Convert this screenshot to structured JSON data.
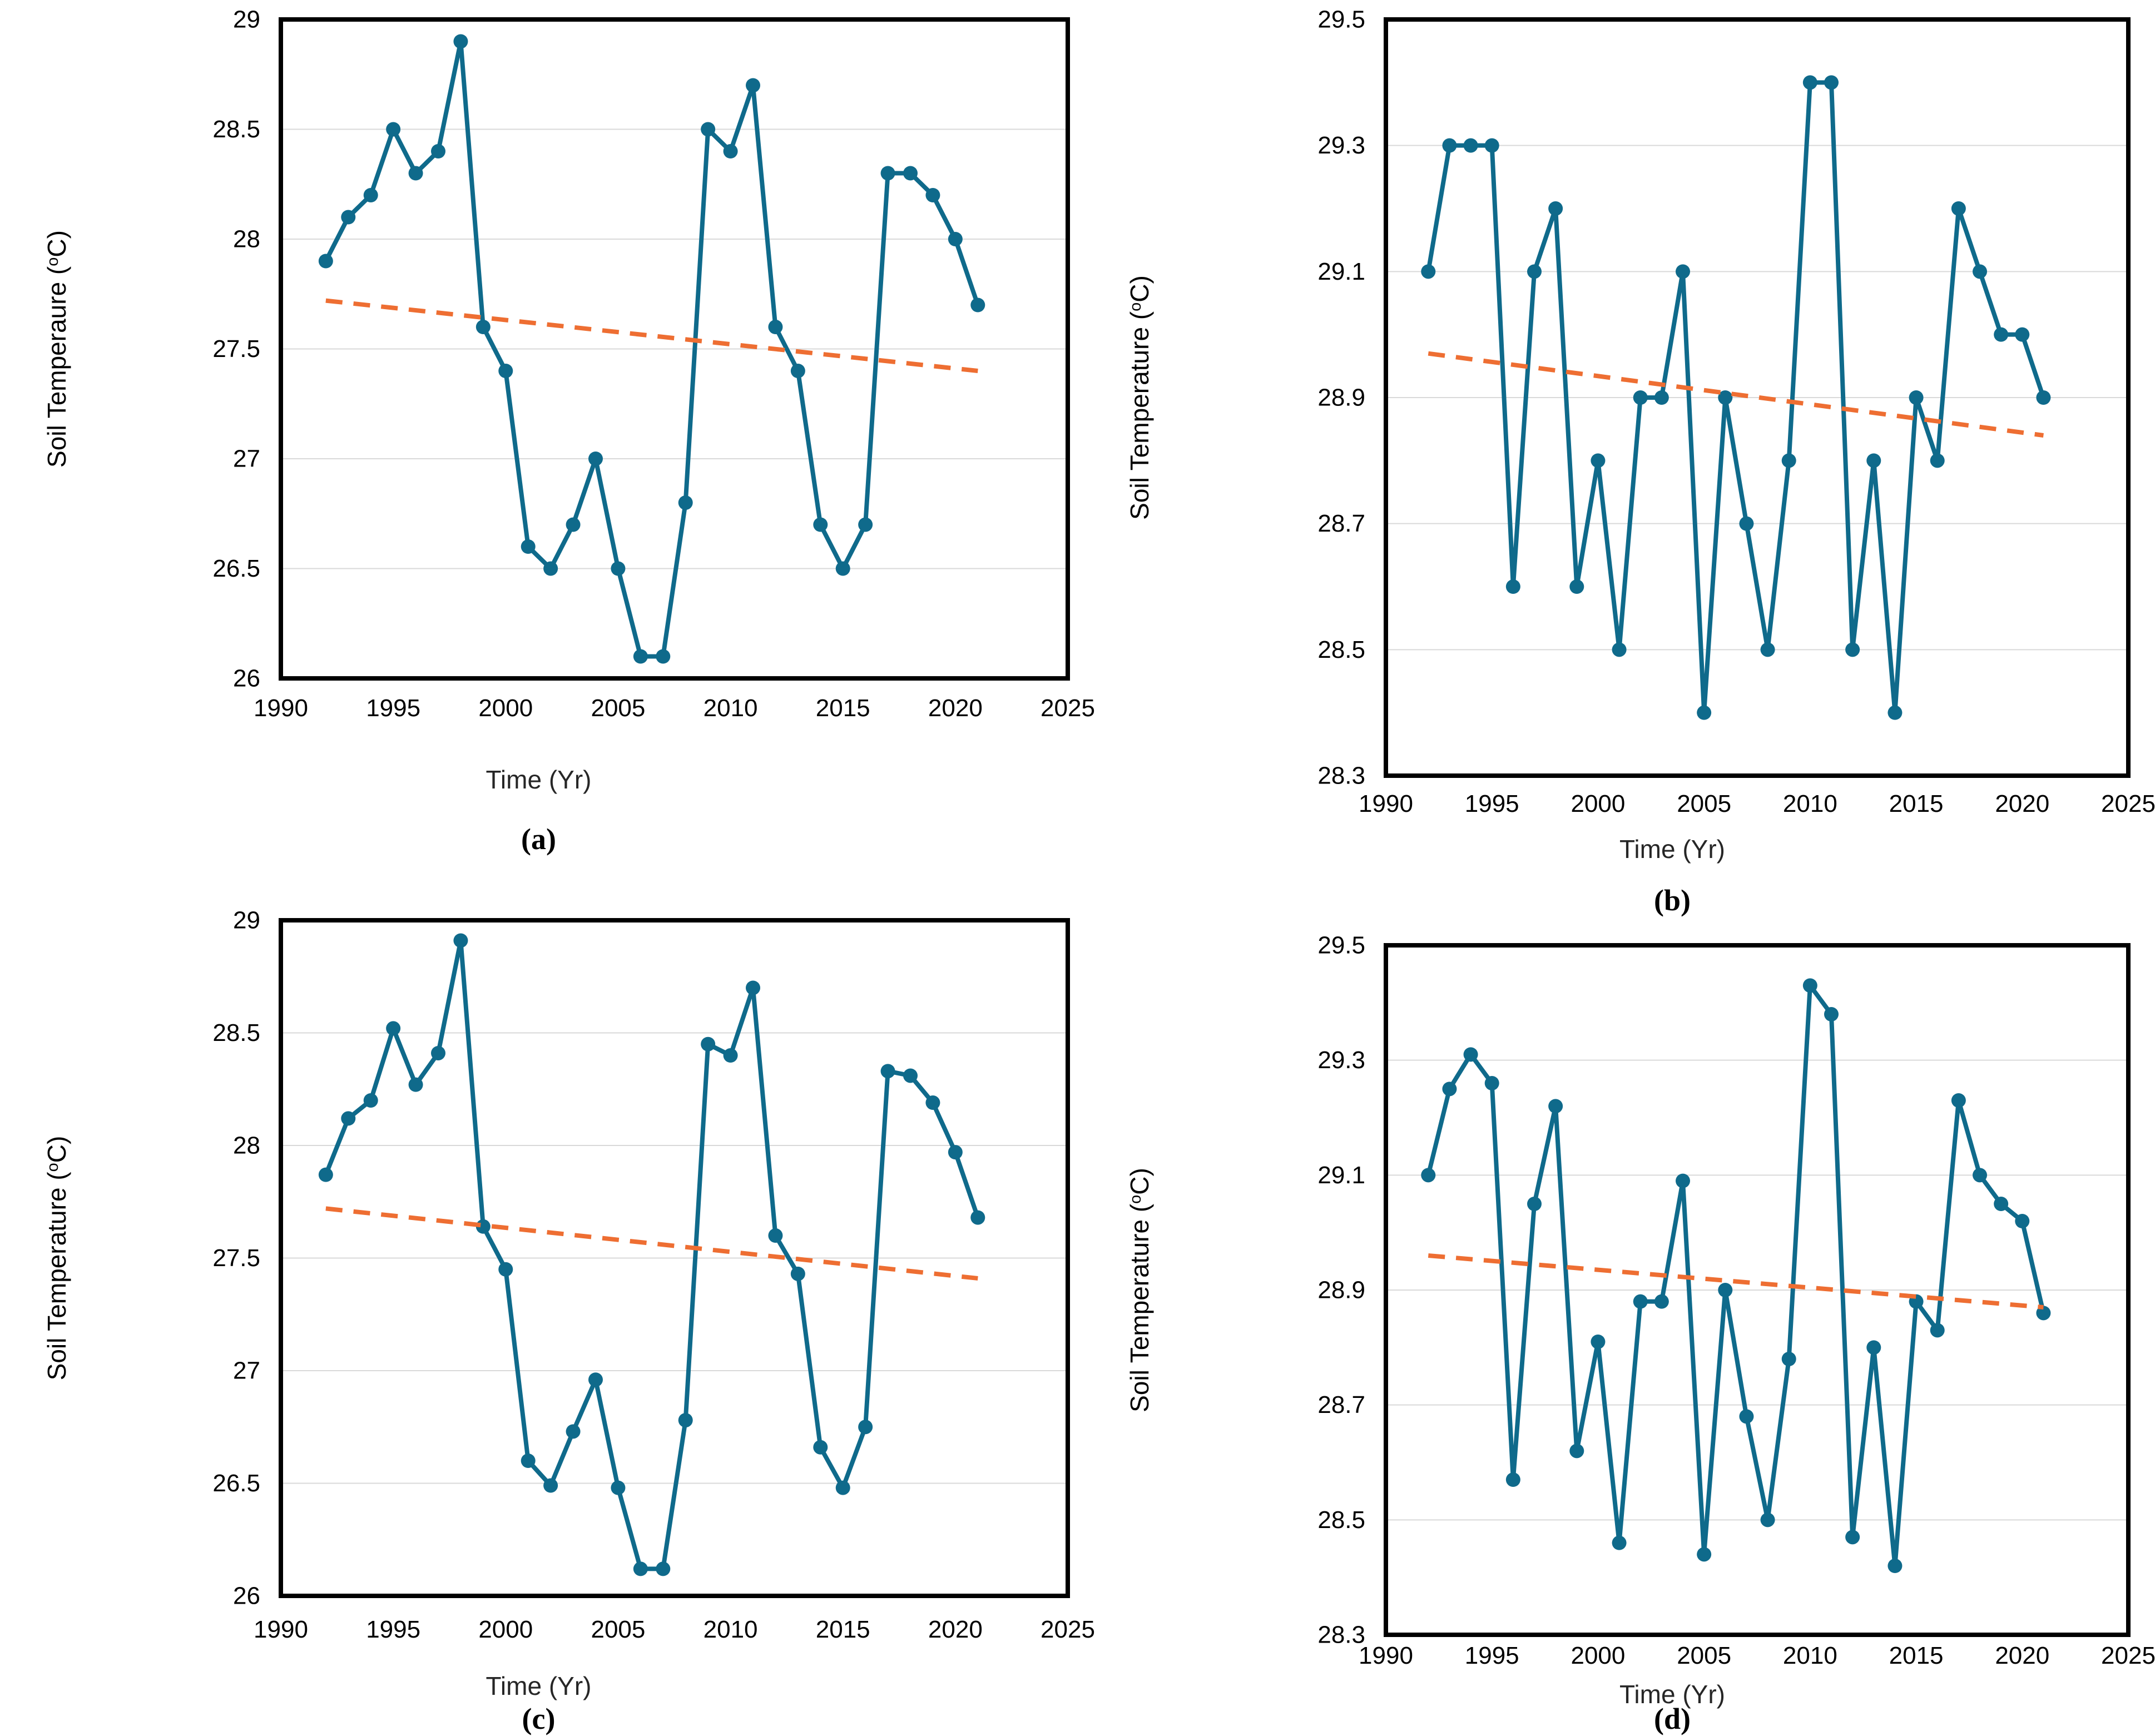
{
  "figure": {
    "description_note": "2x2 grid of soil temperature time-series line charts with dashed linear trend lines",
    "x_axis_title": "Time (Yr)"
  },
  "colors": {
    "series": "#0F6A8B",
    "trend": "#EE6E32",
    "gridline": "#D9D9D9",
    "axis_box": "#000000",
    "text": "#000000"
  },
  "chart_data": [
    {
      "panel_label": "(a)",
      "type": "line",
      "title": "",
      "xlabel": "Time (Yr)",
      "ylabel": "Soil Temperaure (°C)",
      "ylim": [
        26,
        29
      ],
      "yticks": [
        26,
        26.5,
        27,
        27.5,
        28,
        28.5,
        29
      ],
      "ytick_labels": [
        "26",
        "26.5",
        "27",
        "27.5",
        "28",
        "28.5",
        "29"
      ],
      "xlim": [
        1990,
        2025
      ],
      "xticks": [
        1990,
        1995,
        2000,
        2005,
        2010,
        2015,
        2020,
        2025
      ],
      "grid": "horizontal",
      "legend": "none",
      "series": [
        {
          "name": "soil-temperature",
          "style": "line-markers",
          "x": [
            1992,
            1993,
            1994,
            1995,
            1996,
            1997,
            1998,
            1999,
            2000,
            2001,
            2002,
            2003,
            2004,
            2005,
            2006,
            2007,
            2008,
            2009,
            2010,
            2011,
            2012,
            2013,
            2014,
            2015,
            2016,
            2017,
            2018,
            2019,
            2020,
            2021
          ],
          "y": [
            27.9,
            28.1,
            28.2,
            28.5,
            28.3,
            28.4,
            28.9,
            27.6,
            27.4,
            26.6,
            26.5,
            26.7,
            27.0,
            26.5,
            26.1,
            26.1,
            26.8,
            28.5,
            28.4,
            28.7,
            27.6,
            27.4,
            26.7,
            26.5,
            26.7,
            28.3,
            28.3,
            28.2,
            28.0,
            27.7
          ]
        },
        {
          "name": "linear-trend",
          "style": "dashed",
          "x": [
            1992,
            2021
          ],
          "y": [
            27.72,
            27.4
          ]
        }
      ]
    },
    {
      "panel_label": "(b)",
      "type": "line",
      "title": "",
      "xlabel": "Time (Yr)",
      "ylabel": "Soil Temperature (°C)",
      "ylim": [
        28.3,
        29.5
      ],
      "yticks": [
        28.3,
        28.5,
        28.7,
        28.9,
        29.1,
        29.3,
        29.5
      ],
      "ytick_labels": [
        "28.3",
        "28.5",
        "28.7",
        "28.9",
        "29.1",
        "29.3",
        "29.5"
      ],
      "xlim": [
        1990,
        2025
      ],
      "xticks": [
        1990,
        1995,
        2000,
        2005,
        2010,
        2015,
        2020,
        2025
      ],
      "grid": "horizontal",
      "legend": "none",
      "series": [
        {
          "name": "soil-temperature",
          "style": "line-markers",
          "x": [
            1992,
            1993,
            1994,
            1995,
            1996,
            1997,
            1998,
            1999,
            2000,
            2001,
            2002,
            2003,
            2004,
            2005,
            2006,
            2007,
            2008,
            2009,
            2010,
            2011,
            2012,
            2013,
            2014,
            2015,
            2016,
            2017,
            2018,
            2019,
            2020,
            2021
          ],
          "y": [
            29.1,
            29.3,
            29.3,
            29.3,
            28.6,
            29.1,
            29.2,
            28.6,
            28.8,
            28.5,
            28.9,
            28.9,
            29.1,
            28.4,
            28.9,
            28.7,
            28.5,
            28.8,
            29.4,
            29.4,
            28.5,
            28.8,
            28.4,
            28.9,
            28.8,
            29.2,
            29.1,
            29.0,
            29.0,
            28.9
          ]
        },
        {
          "name": "linear-trend",
          "style": "dashed",
          "x": [
            1992,
            2021
          ],
          "y": [
            28.97,
            28.84
          ]
        }
      ]
    },
    {
      "panel_label": "(c)",
      "type": "line",
      "title": "",
      "xlabel": "Time (Yr)",
      "ylabel": "Soil Temperature (°C)",
      "ylim": [
        26,
        29
      ],
      "yticks": [
        26,
        26.5,
        27,
        27.5,
        28,
        28.5,
        29
      ],
      "ytick_labels": [
        "26",
        "26.5",
        "27",
        "27.5",
        "28",
        "28.5",
        "29"
      ],
      "xlim": [
        1990,
        2025
      ],
      "xticks": [
        1990,
        1995,
        2000,
        2005,
        2010,
        2015,
        2020,
        2025
      ],
      "grid": "horizontal",
      "legend": "none",
      "series": [
        {
          "name": "soil-temperature",
          "style": "line-markers",
          "x": [
            1992,
            1993,
            1994,
            1995,
            1996,
            1997,
            1998,
            1999,
            2000,
            2001,
            2002,
            2003,
            2004,
            2005,
            2006,
            2007,
            2008,
            2009,
            2010,
            2011,
            2012,
            2013,
            2014,
            2015,
            2016,
            2017,
            2018,
            2019,
            2020,
            2021
          ],
          "y": [
            27.87,
            28.12,
            28.2,
            28.52,
            28.27,
            28.41,
            28.91,
            27.64,
            27.45,
            26.6,
            26.49,
            26.73,
            26.96,
            26.48,
            26.12,
            26.12,
            26.78,
            28.45,
            28.4,
            28.7,
            27.6,
            27.43,
            26.66,
            26.48,
            26.75,
            28.33,
            28.31,
            28.19,
            27.97,
            27.68
          ]
        },
        {
          "name": "linear-trend",
          "style": "dashed",
          "x": [
            1992,
            2021
          ],
          "y": [
            27.72,
            27.41
          ]
        }
      ]
    },
    {
      "panel_label": "(d)",
      "type": "line",
      "title": "",
      "xlabel": "Time (Yr)",
      "ylabel": "Soil Temperature (°C)",
      "ylim": [
        28.3,
        29.5
      ],
      "yticks": [
        28.3,
        28.5,
        28.7,
        28.9,
        29.1,
        29.3,
        29.5
      ],
      "ytick_labels": [
        "28.3",
        "28.5",
        "28.7",
        "28.9",
        "29.1",
        "29.3",
        "29.5"
      ],
      "xlim": [
        1990,
        2025
      ],
      "xticks": [
        1990,
        1995,
        2000,
        2005,
        2010,
        2015,
        2020,
        2025
      ],
      "grid": "horizontal",
      "legend": "none",
      "series": [
        {
          "name": "soil-temperature",
          "style": "line-markers",
          "x": [
            1992,
            1993,
            1994,
            1995,
            1996,
            1997,
            1998,
            1999,
            2000,
            2001,
            2002,
            2003,
            2004,
            2005,
            2006,
            2007,
            2008,
            2009,
            2010,
            2011,
            2012,
            2013,
            2014,
            2015,
            2016,
            2017,
            2018,
            2019,
            2020,
            2021
          ],
          "y": [
            29.1,
            29.25,
            29.31,
            29.26,
            28.57,
            29.05,
            29.22,
            28.62,
            28.81,
            28.46,
            28.88,
            28.88,
            29.09,
            28.44,
            28.9,
            28.68,
            28.5,
            28.78,
            29.43,
            29.38,
            28.47,
            28.8,
            28.42,
            28.88,
            28.83,
            29.23,
            29.1,
            29.05,
            29.02,
            28.86
          ]
        },
        {
          "name": "linear-trend",
          "style": "dashed",
          "x": [
            1992,
            2021
          ],
          "y": [
            28.96,
            28.87
          ]
        }
      ]
    }
  ]
}
